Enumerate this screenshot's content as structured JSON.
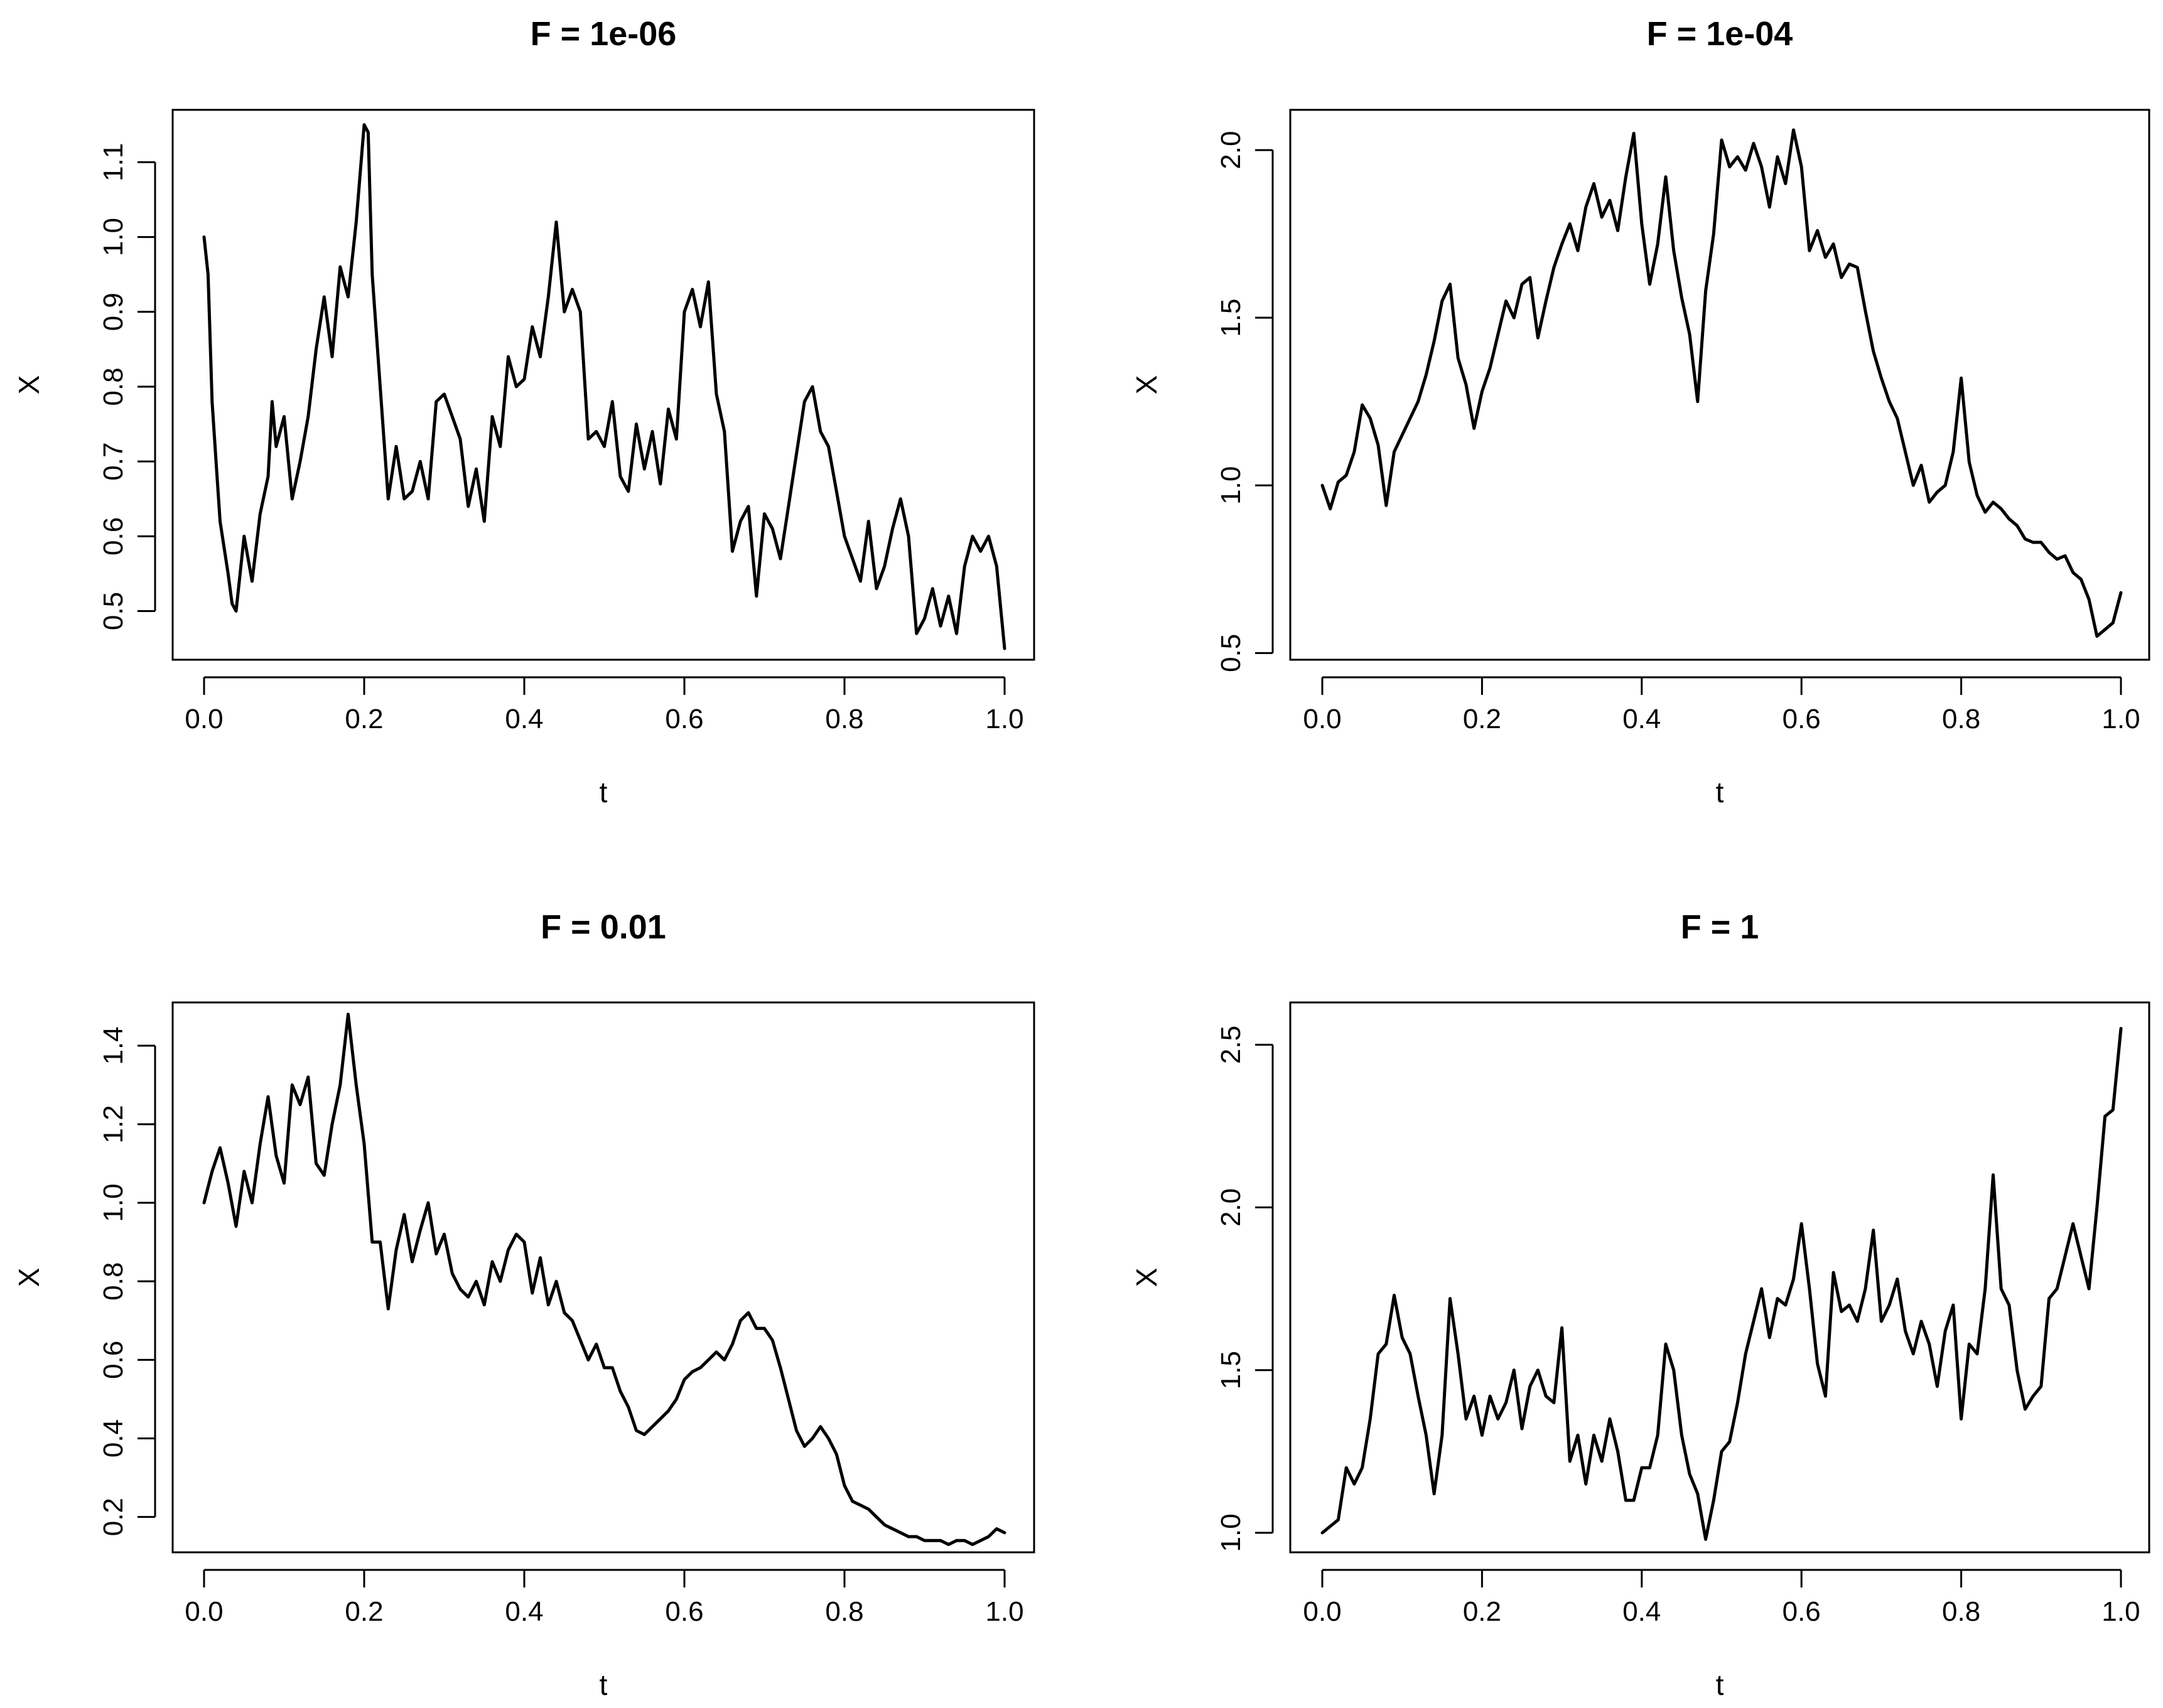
{
  "chart_data": [
    {
      "type": "line",
      "title": "F =  1e-06",
      "xlabel": "t",
      "ylabel": "X",
      "xlim": [
        0.0,
        1.0
      ],
      "ylim": [
        0.435,
        1.17
      ],
      "xticks": [
        "0.0",
        "0.2",
        "0.4",
        "0.6",
        "0.8",
        "1.0"
      ],
      "yticks": [
        "0.5",
        "0.6",
        "0.7",
        "0.8",
        "0.9",
        "1.0",
        "1.1"
      ],
      "grid": false,
      "series": [
        {
          "x": [
            0.0,
            0.005,
            0.01,
            0.015,
            0.02,
            0.03,
            0.035,
            0.04,
            0.05,
            0.06,
            0.07,
            0.08,
            0.085,
            0.09,
            0.1,
            0.11,
            0.12,
            0.13,
            0.14,
            0.15,
            0.16,
            0.17,
            0.18,
            0.19,
            0.2,
            0.205,
            0.21,
            0.22,
            0.23,
            0.24,
            0.25,
            0.26,
            0.27,
            0.28,
            0.29,
            0.3,
            0.31,
            0.32,
            0.33,
            0.34,
            0.35,
            0.36,
            0.37,
            0.38,
            0.39,
            0.4,
            0.41,
            0.42,
            0.43,
            0.44,
            0.45,
            0.46,
            0.47,
            0.48,
            0.49,
            0.5,
            0.51,
            0.52,
            0.53,
            0.54,
            0.55,
            0.56,
            0.57,
            0.58,
            0.59,
            0.6,
            0.61,
            0.62,
            0.63,
            0.64,
            0.65,
            0.66,
            0.67,
            0.68,
            0.69,
            0.7,
            0.71,
            0.72,
            0.73,
            0.74,
            0.75,
            0.76,
            0.77,
            0.78,
            0.79,
            0.8,
            0.81,
            0.82,
            0.83,
            0.84,
            0.85,
            0.86,
            0.87,
            0.88,
            0.89,
            0.9,
            0.91,
            0.92,
            0.93,
            0.94,
            0.95,
            0.96,
            0.97,
            0.98,
            0.99,
            1.0
          ],
          "values": [
            1.0,
            0.95,
            0.78,
            0.7,
            0.62,
            0.55,
            0.51,
            0.5,
            0.6,
            0.54,
            0.63,
            0.68,
            0.78,
            0.72,
            0.76,
            0.65,
            0.7,
            0.76,
            0.85,
            0.92,
            0.84,
            0.96,
            0.92,
            1.02,
            1.15,
            1.14,
            0.95,
            0.8,
            0.65,
            0.72,
            0.65,
            0.66,
            0.7,
            0.65,
            0.78,
            0.79,
            0.76,
            0.73,
            0.64,
            0.69,
            0.62,
            0.76,
            0.72,
            0.84,
            0.8,
            0.81,
            0.88,
            0.84,
            0.92,
            1.02,
            0.9,
            0.93,
            0.9,
            0.73,
            0.74,
            0.72,
            0.78,
            0.68,
            0.66,
            0.75,
            0.69,
            0.74,
            0.67,
            0.77,
            0.73,
            0.9,
            0.93,
            0.88,
            0.94,
            0.79,
            0.74,
            0.58,
            0.62,
            0.64,
            0.52,
            0.63,
            0.61,
            0.57,
            0.64,
            0.71,
            0.78,
            0.8,
            0.74,
            0.72,
            0.66,
            0.6,
            0.57,
            0.54,
            0.62,
            0.53,
            0.56,
            0.61,
            0.65,
            0.6,
            0.47,
            0.49,
            0.53,
            0.48,
            0.52,
            0.47,
            0.56,
            0.6,
            0.58,
            0.6,
            0.56,
            0.45
          ]
        }
      ]
    },
    {
      "type": "line",
      "title": "F =  1e-04",
      "xlabel": "t",
      "ylabel": "X",
      "xlim": [
        0.0,
        1.0
      ],
      "ylim": [
        0.48,
        2.12
      ],
      "xticks": [
        "0.0",
        "0.2",
        "0.4",
        "0.6",
        "0.8",
        "1.0"
      ],
      "yticks": [
        "0.5",
        "1.0",
        "1.5",
        "2.0"
      ],
      "grid": false,
      "series": [
        {
          "x": [
            0.0,
            0.01,
            0.02,
            0.03,
            0.04,
            0.05,
            0.06,
            0.07,
            0.08,
            0.09,
            0.1,
            0.11,
            0.12,
            0.13,
            0.14,
            0.15,
            0.16,
            0.17,
            0.18,
            0.19,
            0.2,
            0.21,
            0.22,
            0.23,
            0.24,
            0.25,
            0.26,
            0.27,
            0.28,
            0.29,
            0.3,
            0.31,
            0.32,
            0.33,
            0.34,
            0.35,
            0.36,
            0.37,
            0.38,
            0.39,
            0.4,
            0.41,
            0.42,
            0.43,
            0.44,
            0.45,
            0.46,
            0.47,
            0.48,
            0.49,
            0.5,
            0.51,
            0.52,
            0.53,
            0.54,
            0.55,
            0.56,
            0.57,
            0.58,
            0.59,
            0.6,
            0.61,
            0.62,
            0.63,
            0.64,
            0.65,
            0.66,
            0.67,
            0.68,
            0.69,
            0.7,
            0.71,
            0.72,
            0.73,
            0.74,
            0.75,
            0.76,
            0.77,
            0.78,
            0.79,
            0.8,
            0.81,
            0.82,
            0.83,
            0.84,
            0.85,
            0.86,
            0.87,
            0.88,
            0.89,
            0.9,
            0.91,
            0.92,
            0.93,
            0.94,
            0.95,
            0.96,
            0.97,
            0.98,
            0.99,
            1.0
          ],
          "values": [
            1.0,
            0.93,
            1.01,
            1.03,
            1.1,
            1.24,
            1.2,
            1.12,
            0.94,
            1.1,
            1.15,
            1.2,
            1.25,
            1.33,
            1.43,
            1.55,
            1.6,
            1.38,
            1.3,
            1.17,
            1.28,
            1.35,
            1.45,
            1.55,
            1.5,
            1.6,
            1.62,
            1.44,
            1.55,
            1.65,
            1.72,
            1.78,
            1.7,
            1.83,
            1.9,
            1.8,
            1.85,
            1.76,
            1.92,
            2.05,
            1.78,
            1.6,
            1.72,
            1.92,
            1.7,
            1.56,
            1.45,
            1.25,
            1.58,
            1.75,
            2.03,
            1.95,
            1.98,
            1.94,
            2.02,
            1.95,
            1.83,
            1.98,
            1.9,
            2.06,
            1.95,
            1.7,
            1.76,
            1.68,
            1.72,
            1.62,
            1.66,
            1.65,
            1.52,
            1.4,
            1.32,
            1.25,
            1.2,
            1.1,
            1.0,
            1.06,
            0.95,
            0.98,
            1.0,
            1.1,
            1.32,
            1.07,
            0.97,
            0.92,
            0.95,
            0.93,
            0.9,
            0.88,
            0.84,
            0.83,
            0.83,
            0.8,
            0.78,
            0.79,
            0.74,
            0.72,
            0.66,
            0.55,
            0.57,
            0.59,
            0.68
          ]
        }
      ]
    },
    {
      "type": "line",
      "title": "F =  0.01",
      "xlabel": "t",
      "ylabel": "X",
      "xlim": [
        0.0,
        1.0
      ],
      "ylim": [
        0.11,
        1.51
      ],
      "xticks": [
        "0.0",
        "0.2",
        "0.4",
        "0.6",
        "0.8",
        "1.0"
      ],
      "yticks": [
        "0.2",
        "0.4",
        "0.6",
        "0.8",
        "1.0",
        "1.2",
        "1.4"
      ],
      "grid": false,
      "series": [
        {
          "x": [
            0.0,
            0.01,
            0.02,
            0.03,
            0.04,
            0.05,
            0.06,
            0.07,
            0.08,
            0.09,
            0.1,
            0.11,
            0.12,
            0.13,
            0.14,
            0.15,
            0.16,
            0.17,
            0.18,
            0.19,
            0.2,
            0.21,
            0.22,
            0.23,
            0.24,
            0.25,
            0.26,
            0.27,
            0.28,
            0.29,
            0.3,
            0.31,
            0.32,
            0.33,
            0.34,
            0.35,
            0.36,
            0.37,
            0.38,
            0.39,
            0.4,
            0.41,
            0.42,
            0.43,
            0.44,
            0.45,
            0.46,
            0.47,
            0.48,
            0.49,
            0.5,
            0.51,
            0.52,
            0.53,
            0.54,
            0.55,
            0.56,
            0.57,
            0.58,
            0.59,
            0.6,
            0.61,
            0.62,
            0.63,
            0.64,
            0.65,
            0.66,
            0.67,
            0.68,
            0.69,
            0.7,
            0.71,
            0.72,
            0.73,
            0.74,
            0.75,
            0.76,
            0.77,
            0.78,
            0.79,
            0.8,
            0.81,
            0.82,
            0.83,
            0.84,
            0.85,
            0.86,
            0.87,
            0.88,
            0.89,
            0.9,
            0.91,
            0.92,
            0.93,
            0.94,
            0.95,
            0.96,
            0.97,
            0.98,
            0.99,
            1.0
          ],
          "values": [
            1.0,
            1.08,
            1.14,
            1.05,
            0.94,
            1.08,
            1.0,
            1.15,
            1.27,
            1.12,
            1.05,
            1.3,
            1.25,
            1.32,
            1.1,
            1.07,
            1.2,
            1.3,
            1.48,
            1.3,
            1.15,
            0.9,
            0.9,
            0.73,
            0.88,
            0.97,
            0.85,
            0.93,
            1.0,
            0.87,
            0.92,
            0.82,
            0.78,
            0.76,
            0.8,
            0.74,
            0.85,
            0.8,
            0.88,
            0.92,
            0.9,
            0.77,
            0.86,
            0.74,
            0.8,
            0.72,
            0.7,
            0.65,
            0.6,
            0.64,
            0.58,
            0.58,
            0.52,
            0.48,
            0.42,
            0.41,
            0.43,
            0.45,
            0.47,
            0.5,
            0.55,
            0.57,
            0.58,
            0.6,
            0.62,
            0.6,
            0.64,
            0.7,
            0.72,
            0.68,
            0.68,
            0.65,
            0.58,
            0.5,
            0.42,
            0.38,
            0.4,
            0.43,
            0.4,
            0.36,
            0.28,
            0.24,
            0.23,
            0.22,
            0.2,
            0.18,
            0.17,
            0.16,
            0.15,
            0.15,
            0.14,
            0.14,
            0.14,
            0.13,
            0.14,
            0.14,
            0.13,
            0.14,
            0.15,
            0.17,
            0.16
          ]
        }
      ]
    },
    {
      "type": "line",
      "title": "F =  1",
      "xlabel": "t",
      "ylabel": "X",
      "xlim": [
        0.0,
        1.0
      ],
      "ylim": [
        0.94,
        2.63
      ],
      "xticks": [
        "0.0",
        "0.2",
        "0.4",
        "0.6",
        "0.8",
        "1.0"
      ],
      "yticks": [
        "1.0",
        "1.5",
        "2.0",
        "2.5"
      ],
      "grid": false,
      "series": [
        {
          "x": [
            0.0,
            0.01,
            0.02,
            0.03,
            0.04,
            0.05,
            0.06,
            0.07,
            0.08,
            0.09,
            0.1,
            0.11,
            0.12,
            0.13,
            0.14,
            0.15,
            0.16,
            0.17,
            0.18,
            0.19,
            0.2,
            0.21,
            0.22,
            0.23,
            0.24,
            0.25,
            0.26,
            0.27,
            0.28,
            0.29,
            0.3,
            0.31,
            0.32,
            0.33,
            0.34,
            0.35,
            0.36,
            0.37,
            0.38,
            0.39,
            0.4,
            0.41,
            0.42,
            0.43,
            0.44,
            0.45,
            0.46,
            0.47,
            0.48,
            0.49,
            0.5,
            0.51,
            0.52,
            0.53,
            0.54,
            0.55,
            0.56,
            0.57,
            0.58,
            0.59,
            0.6,
            0.61,
            0.62,
            0.63,
            0.64,
            0.65,
            0.66,
            0.67,
            0.68,
            0.69,
            0.7,
            0.71,
            0.72,
            0.73,
            0.74,
            0.75,
            0.76,
            0.77,
            0.78,
            0.79,
            0.8,
            0.81,
            0.82,
            0.83,
            0.84,
            0.85,
            0.86,
            0.87,
            0.88,
            0.89,
            0.9,
            0.91,
            0.92,
            0.93,
            0.94,
            0.95,
            0.96,
            0.97,
            0.98,
            0.99,
            1.0
          ],
          "values": [
            1.0,
            1.02,
            1.04,
            1.2,
            1.15,
            1.2,
            1.35,
            1.55,
            1.58,
            1.73,
            1.6,
            1.55,
            1.42,
            1.3,
            1.12,
            1.3,
            1.72,
            1.55,
            1.35,
            1.42,
            1.3,
            1.42,
            1.35,
            1.4,
            1.5,
            1.32,
            1.45,
            1.5,
            1.42,
            1.4,
            1.63,
            1.22,
            1.3,
            1.15,
            1.3,
            1.22,
            1.35,
            1.25,
            1.1,
            1.1,
            1.2,
            1.2,
            1.3,
            1.58,
            1.5,
            1.3,
            1.18,
            1.12,
            0.98,
            1.1,
            1.25,
            1.28,
            1.4,
            1.55,
            1.65,
            1.75,
            1.6,
            1.72,
            1.7,
            1.78,
            1.95,
            1.75,
            1.52,
            1.42,
            1.8,
            1.68,
            1.7,
            1.65,
            1.75,
            1.93,
            1.65,
            1.7,
            1.78,
            1.62,
            1.55,
            1.65,
            1.58,
            1.45,
            1.62,
            1.7,
            1.35,
            1.58,
            1.55,
            1.75,
            2.1,
            1.75,
            1.7,
            1.5,
            1.38,
            1.42,
            1.45,
            1.72,
            1.75,
            1.85,
            1.95,
            1.85,
            1.75,
            2.0,
            2.28,
            2.3,
            2.55
          ]
        }
      ]
    }
  ]
}
